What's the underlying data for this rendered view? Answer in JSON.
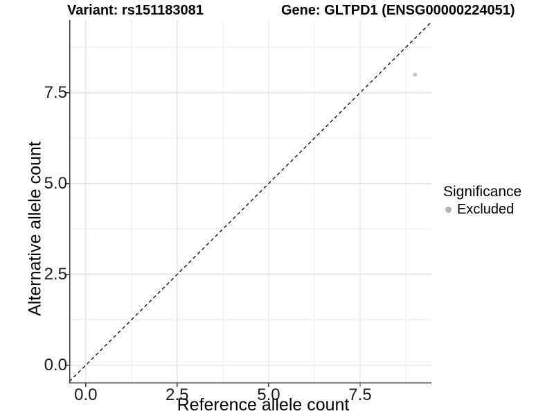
{
  "figure": {
    "title_left": "Variant: rs151183081",
    "title_right": "Gene: GLTPD1 (ENSG00000224051)"
  },
  "chart_data": {
    "type": "scatter",
    "title_left": "Variant: rs151183081",
    "title_right": "Gene: GLTPD1 (ENSG00000224051)",
    "xlabel": "Reference allele count",
    "ylabel": "Alternative allele count",
    "xlim": [
      -0.45,
      9.45
    ],
    "ylim": [
      -0.5,
      9.5
    ],
    "x_ticks": [
      0,
      2.5,
      5,
      7.5
    ],
    "y_ticks": [
      0,
      2.5,
      5,
      7.5
    ],
    "x_tick_labels": [
      "0.0",
      "2.5",
      "5.0",
      "7.5"
    ],
    "y_tick_labels": [
      "0.0",
      "2.5",
      "5.0",
      "7.5"
    ],
    "x_minor_ticks": [
      1.25,
      3.75,
      6.25,
      8.75
    ],
    "y_minor_ticks": [
      1.25,
      3.75,
      6.25,
      8.75
    ],
    "grid": "major+minor",
    "points": [
      {
        "x": 9,
        "y": 8,
        "series": "Excluded"
      }
    ],
    "reference_line": {
      "type": "identity",
      "slope": 1,
      "intercept": 0,
      "style": "dashed",
      "color": "#111111"
    },
    "legend": {
      "title": "Significance",
      "position": "right",
      "items": [
        {
          "label": "Excluded",
          "color": "#b3b3b3",
          "marker": "circle"
        }
      ]
    },
    "colors": {
      "background": "#ffffff",
      "point": "#c4c4c4",
      "grid_major": "#e3e3e3",
      "grid_minor": "#f1f1f1",
      "axis_line": "#3a3a3a",
      "tick_mark": "#333333",
      "tick_label": "#1a1a1a"
    }
  }
}
